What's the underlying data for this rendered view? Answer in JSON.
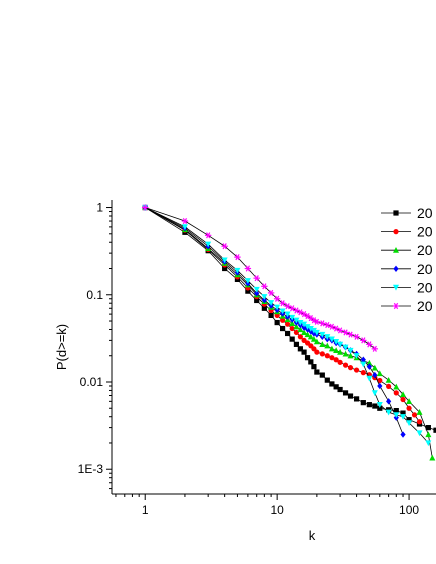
{
  "chart_data": {
    "type": "scatter",
    "title": "",
    "xlabel": "k",
    "ylabel": "P(d>=k)",
    "xscale": "log",
    "yscale": "log",
    "xlim": [
      0.56,
      160
    ],
    "ylim": [
      0.00052,
      1.22
    ],
    "grid": false,
    "legend_position": "right",
    "x_major_ticks": [
      1,
      10,
      100
    ],
    "x_tick_labels": [
      "1",
      "10",
      "100"
    ],
    "y_major_ticks": [
      1,
      0.1,
      0.01,
      0.001
    ],
    "y_tick_labels": [
      "1",
      "0.1",
      "0.01",
      "1E-3"
    ],
    "series": [
      {
        "name": "20",
        "color": "#000000",
        "marker": "square",
        "x": [
          1,
          2,
          3,
          4,
          5,
          6,
          7,
          8,
          9,
          10,
          11,
          12,
          13,
          14,
          15,
          16,
          17,
          18,
          19,
          20,
          22,
          24,
          26,
          28,
          30,
          33,
          36,
          40,
          45,
          50,
          55,
          60,
          70,
          80,
          90,
          100,
          120,
          140,
          160
        ],
        "values": [
          1,
          0.52,
          0.32,
          0.2,
          0.15,
          0.11,
          0.086,
          0.07,
          0.058,
          0.048,
          0.041,
          0.036,
          0.031,
          0.027,
          0.024,
          0.022,
          0.019,
          0.017,
          0.015,
          0.013,
          0.012,
          0.0105,
          0.0095,
          0.0088,
          0.0082,
          0.0075,
          0.0069,
          0.0064,
          0.0058,
          0.0055,
          0.0053,
          0.005,
          0.0048,
          0.0047,
          0.0044,
          0.0037,
          0.0033,
          0.003,
          0.0028
        ]
      },
      {
        "name": "20",
        "color": "#ff0000",
        "marker": "circle",
        "x": [
          1,
          2,
          3,
          4,
          5,
          6,
          7,
          8,
          9,
          10,
          11,
          12,
          13,
          14,
          15,
          16,
          17,
          18,
          19,
          20,
          22,
          24,
          26,
          28,
          30,
          33,
          36,
          40,
          45,
          50,
          55,
          60,
          70,
          80,
          90,
          100,
          110,
          120
        ],
        "values": [
          1,
          0.55,
          0.33,
          0.22,
          0.16,
          0.12,
          0.095,
          0.078,
          0.066,
          0.058,
          0.051,
          0.046,
          0.041,
          0.037,
          0.033,
          0.03,
          0.028,
          0.026,
          0.024,
          0.022,
          0.021,
          0.02,
          0.019,
          0.018,
          0.0168,
          0.0156,
          0.0146,
          0.0137,
          0.0128,
          0.0121,
          0.0112,
          0.0104,
          0.0089,
          0.0075,
          0.0063,
          0.005,
          0.0042,
          0.0035
        ]
      },
      {
        "name": "20",
        "color": "#00dd00",
        "marker": "triangle-up",
        "x": [
          1,
          2,
          3,
          4,
          5,
          6,
          7,
          8,
          9,
          10,
          11,
          12,
          13,
          14,
          15,
          16,
          17,
          18,
          19,
          20,
          22,
          24,
          26,
          28,
          30,
          33,
          36,
          40,
          45,
          50,
          55,
          60,
          70,
          80,
          90,
          100,
          120,
          140,
          150
        ],
        "values": [
          1,
          0.56,
          0.34,
          0.23,
          0.17,
          0.13,
          0.1,
          0.084,
          0.072,
          0.064,
          0.057,
          0.052,
          0.047,
          0.043,
          0.04,
          0.037,
          0.035,
          0.033,
          0.031,
          0.029,
          0.027,
          0.026,
          0.024,
          0.023,
          0.022,
          0.021,
          0.02,
          0.019,
          0.0175,
          0.0165,
          0.0145,
          0.0125,
          0.0105,
          0.0088,
          0.0072,
          0.006,
          0.0045,
          0.0025,
          0.00135
        ]
      },
      {
        "name": "20",
        "color": "#0000ff",
        "marker": "diamond",
        "x": [
          1,
          2,
          3,
          4,
          5,
          6,
          7,
          8,
          9,
          10,
          11,
          12,
          13,
          14,
          15,
          16,
          17,
          18,
          19,
          20,
          22,
          24,
          26,
          28,
          30,
          33,
          36,
          40,
          45,
          50,
          55,
          60,
          70,
          80,
          90
        ],
        "values": [
          1,
          0.58,
          0.36,
          0.24,
          0.18,
          0.135,
          0.104,
          0.087,
          0.075,
          0.067,
          0.061,
          0.056,
          0.052,
          0.048,
          0.045,
          0.042,
          0.04,
          0.038,
          0.036,
          0.035,
          0.033,
          0.031,
          0.03,
          0.028,
          0.027,
          0.025,
          0.023,
          0.021,
          0.018,
          0.015,
          0.012,
          0.009,
          0.006,
          0.0039,
          0.0025
        ]
      },
      {
        "name": "20",
        "color": "#00ffff",
        "marker": "triangle-down",
        "x": [
          1,
          2,
          3,
          4,
          5,
          6,
          7,
          8,
          9,
          10,
          11,
          12,
          13,
          14,
          15,
          16,
          17,
          18,
          19,
          20,
          22,
          24,
          26,
          28,
          30,
          33,
          36,
          40,
          45,
          50,
          55,
          60,
          70,
          80,
          90,
          100,
          120,
          140
        ],
        "values": [
          1,
          0.6,
          0.38,
          0.25,
          0.19,
          0.145,
          0.115,
          0.095,
          0.081,
          0.072,
          0.065,
          0.06,
          0.055,
          0.051,
          0.048,
          0.046,
          0.043,
          0.041,
          0.039,
          0.037,
          0.035,
          0.033,
          0.031,
          0.029,
          0.027,
          0.025,
          0.023,
          0.02,
          0.016,
          0.011,
          0.0075,
          0.0055,
          0.0045,
          0.0042,
          0.004,
          0.0034,
          0.0026,
          0.002
        ]
      },
      {
        "name": "20",
        "color": "#ff00ff",
        "marker": "star",
        "x": [
          1,
          2,
          3,
          4,
          5,
          6,
          7,
          8,
          9,
          10,
          11,
          12,
          13,
          14,
          15,
          16,
          17,
          18,
          19,
          20,
          22,
          24,
          26,
          28,
          30,
          33,
          36,
          40,
          45,
          50,
          55
        ],
        "values": [
          1,
          0.7,
          0.48,
          0.36,
          0.27,
          0.2,
          0.155,
          0.125,
          0.105,
          0.09,
          0.08,
          0.074,
          0.07,
          0.066,
          0.063,
          0.06,
          0.057,
          0.054,
          0.051,
          0.049,
          0.047,
          0.045,
          0.043,
          0.041,
          0.039,
          0.037,
          0.035,
          0.033,
          0.03,
          0.027,
          0.024
        ]
      }
    ]
  }
}
